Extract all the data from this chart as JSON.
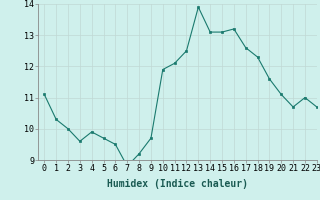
{
  "x": [
    0,
    1,
    2,
    3,
    4,
    5,
    6,
    7,
    8,
    9,
    10,
    11,
    12,
    13,
    14,
    15,
    16,
    17,
    18,
    19,
    20,
    21,
    22,
    23
  ],
  "y": [
    11.1,
    10.3,
    10.0,
    9.6,
    9.9,
    9.7,
    9.5,
    8.8,
    9.2,
    9.7,
    11.9,
    12.1,
    12.5,
    13.9,
    13.1,
    13.1,
    13.2,
    12.6,
    12.3,
    11.6,
    11.1,
    10.7,
    11.0,
    10.7
  ],
  "xlabel": "Humidex (Indice chaleur)",
  "ylim": [
    9,
    14
  ],
  "xlim": [
    -0.5,
    23
  ],
  "yticks": [
    9,
    10,
    11,
    12,
    13,
    14
  ],
  "xticks": [
    0,
    1,
    2,
    3,
    4,
    5,
    6,
    7,
    8,
    9,
    10,
    11,
    12,
    13,
    14,
    15,
    16,
    17,
    18,
    19,
    20,
    21,
    22,
    23
  ],
  "line_color": "#1a7a6e",
  "marker": "s",
  "marker_size": 2.0,
  "bg_color": "#cff0ec",
  "grid_color": "#c0d8d4",
  "axes_bg": "#cff0ec",
  "xlabel_fontsize": 7,
  "tick_fontsize": 6
}
